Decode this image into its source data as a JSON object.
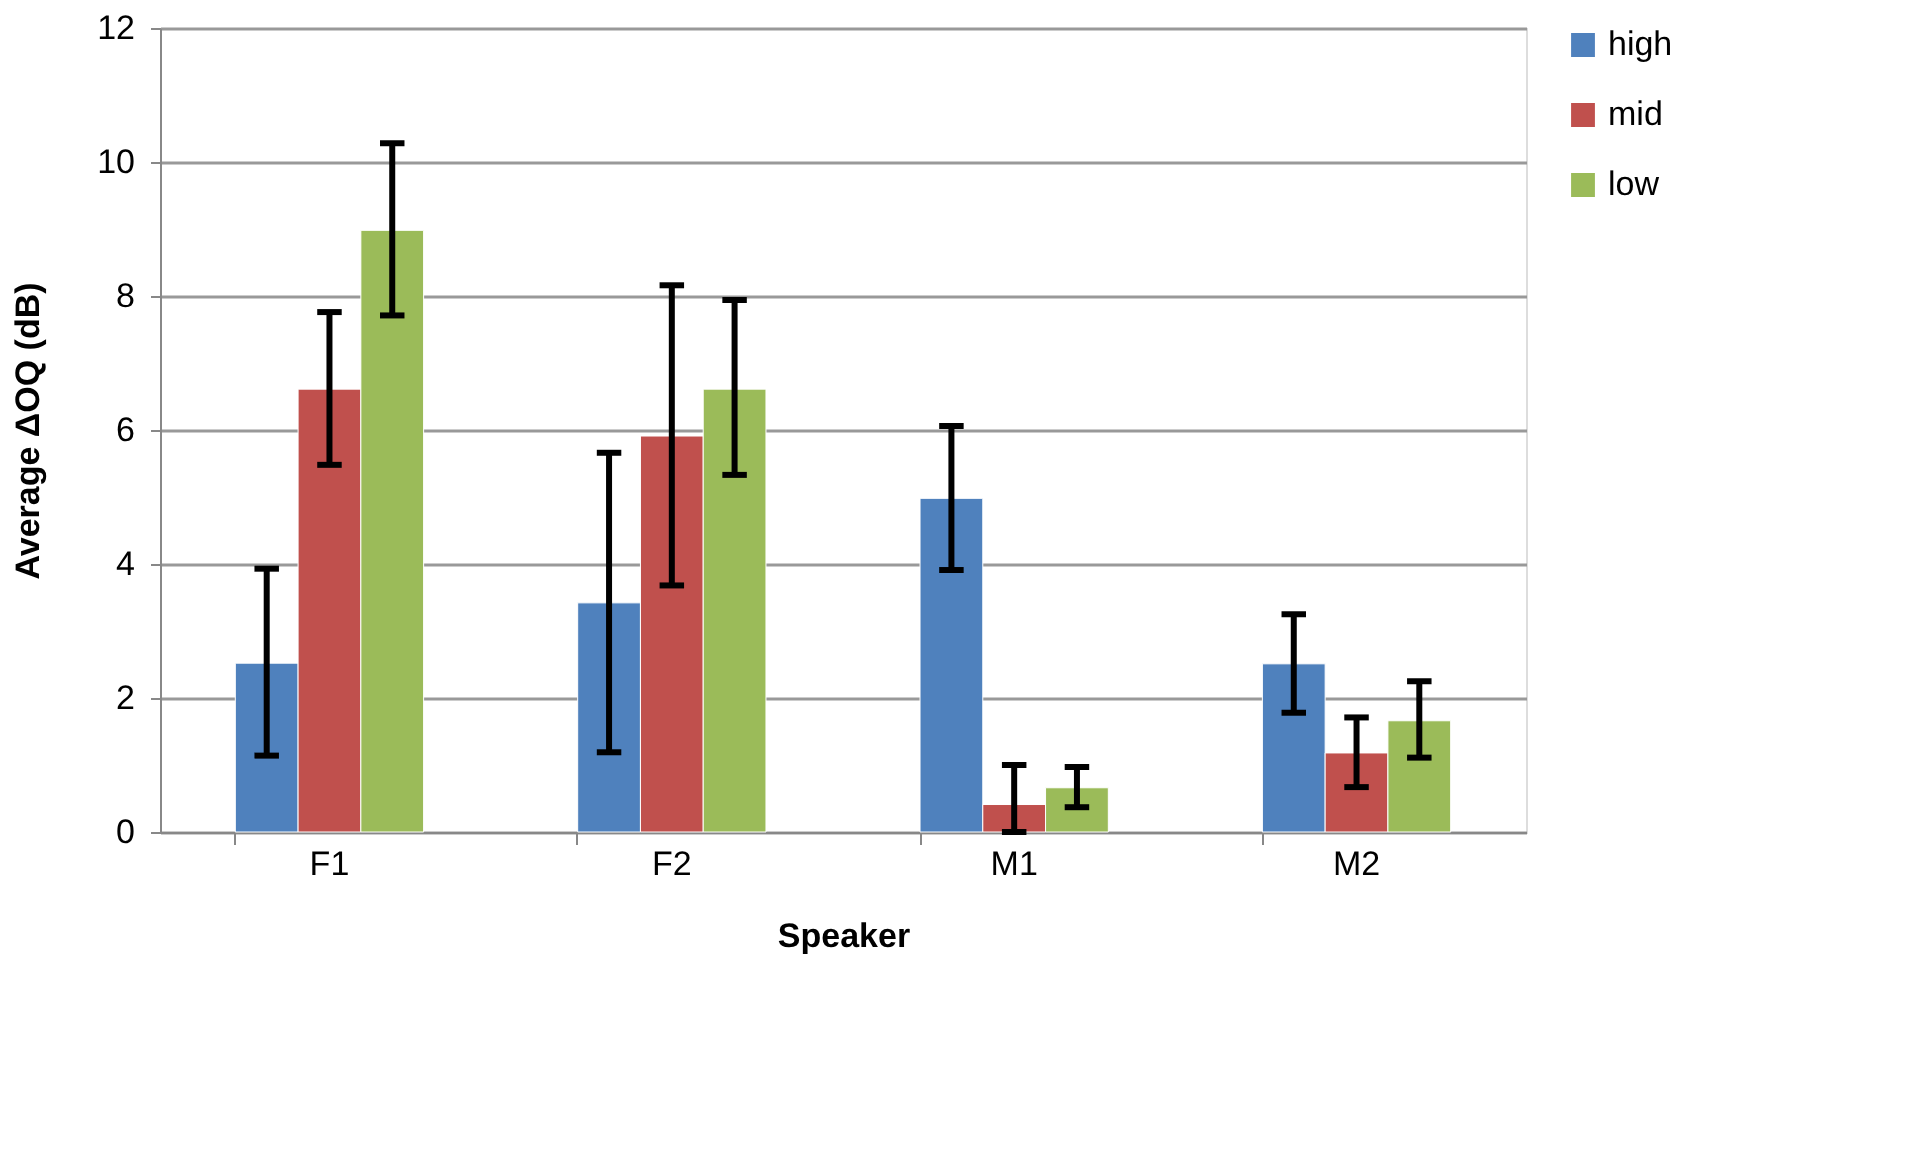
{
  "chart_data": {
    "type": "bar",
    "xlabel": "Speaker",
    "ylabel": "Average ΔOQ (dB)",
    "categories": [
      "F1",
      "F2",
      "M1",
      "M2"
    ],
    "series": [
      {
        "name": "high",
        "color": "#4f81bd",
        "values": [
          2.52,
          3.42,
          4.98,
          2.51
        ],
        "errors": [
          [
            1.14,
            3.93
          ],
          [
            1.19,
            5.66
          ],
          [
            3.91,
            6.06
          ],
          [
            1.78,
            3.25
          ]
        ]
      },
      {
        "name": "mid",
        "color": "#c0504d",
        "values": [
          6.61,
          5.91,
          0.41,
          1.18
        ],
        "errors": [
          [
            5.48,
            7.76
          ],
          [
            3.68,
            8.16
          ],
          [
            0.0,
            1.0
          ],
          [
            0.67,
            1.71
          ]
        ]
      },
      {
        "name": "low",
        "color": "#9bbb59",
        "values": [
          8.98,
          6.61,
          0.66,
          1.66
        ],
        "errors": [
          [
            7.71,
            10.28
          ],
          [
            5.33,
            7.94
          ],
          [
            0.37,
            0.97
          ],
          [
            1.11,
            2.25
          ]
        ]
      }
    ],
    "ylim": [
      0,
      12
    ],
    "yticks": [
      0,
      2,
      4,
      6,
      8,
      10,
      12
    ],
    "grid": "y",
    "legend": "right"
  }
}
